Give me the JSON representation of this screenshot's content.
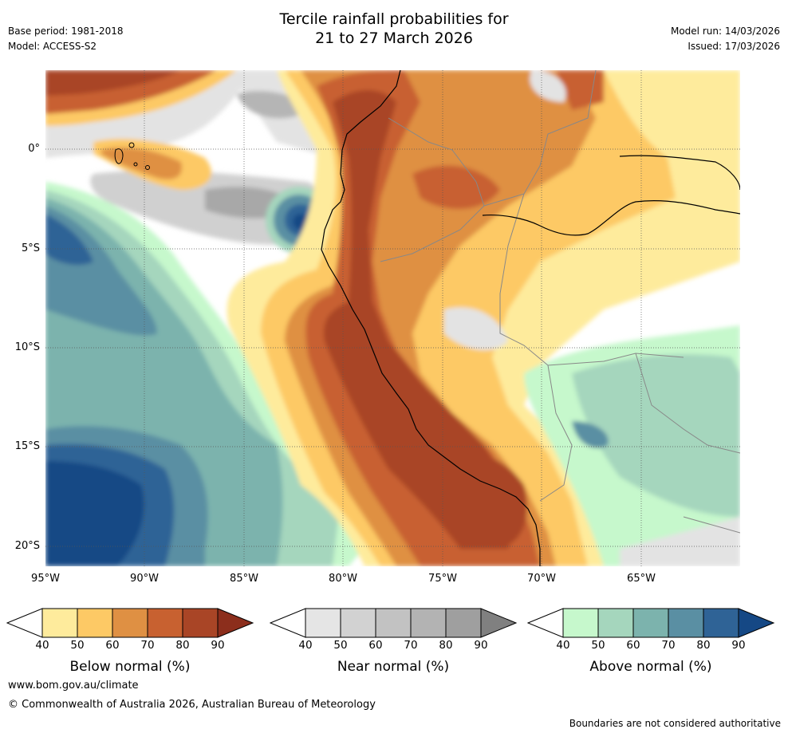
{
  "header": {
    "title_line1": "Tercile rainfall probabilities for",
    "title_line2": "21 to 27 March 2026",
    "base_period": "Base period: 1981-2018",
    "model": "Model: ACCESS-S2",
    "model_run": "Model run: 14/03/2026",
    "issued": "Issued: 17/03/2026"
  },
  "map": {
    "lat_labels": [
      "0°",
      "5°S",
      "10°S",
      "15°S",
      "20°S"
    ],
    "lon_labels": [
      "95°W",
      "90°W",
      "85°W",
      "80°W",
      "75°W",
      "70°W",
      "65°W"
    ]
  },
  "colorbars": [
    {
      "title": "Below normal (%)",
      "ticks": [
        "40",
        "50",
        "60",
        "70",
        "80",
        "90"
      ],
      "colors": [
        "#ffffff",
        "#feeb9c",
        "#fdc965",
        "#df9043",
        "#c86130",
        "#a94526",
        "#8c2e1c"
      ]
    },
    {
      "title": "Near normal (%)",
      "ticks": [
        "40",
        "50",
        "60",
        "70",
        "80",
        "90"
      ],
      "colors": [
        "#ffffff",
        "#e5e5e5",
        "#d2d2d2",
        "#c2c2c2",
        "#b3b3b3",
        "#9f9f9f",
        "#808080"
      ]
    },
    {
      "title": "Above normal (%)",
      "ticks": [
        "40",
        "50",
        "60",
        "70",
        "80",
        "90"
      ],
      "colors": [
        "#ffffff",
        "#c6f8cc",
        "#a5d6bd",
        "#7cb3ad",
        "#5a8fa3",
        "#2f6396",
        "#154885"
      ]
    }
  ],
  "footer": {
    "website": "www.bom.gov.au/climate",
    "copyright": "© Commonwealth of Australia 2026, Australian Bureau of Meteorology",
    "disclaimer": "Boundaries are not considered authoritative"
  }
}
